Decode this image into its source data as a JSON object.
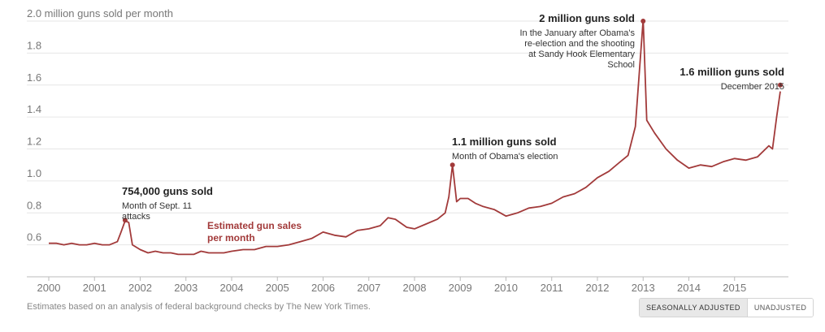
{
  "chart_data": {
    "type": "line",
    "title": "",
    "ylabel_top": "2.0 million guns sold per month",
    "xlabel": "",
    "ylim": [
      0.4,
      2.0
    ],
    "xlim": [
      2000,
      2016
    ],
    "yticks": [
      {
        "value": 2.0,
        "label": "2.0 million guns sold per month"
      },
      {
        "value": 1.8,
        "label": "1.8"
      },
      {
        "value": 1.6,
        "label": "1.6"
      },
      {
        "value": 1.4,
        "label": "1.4"
      },
      {
        "value": 1.2,
        "label": "1.2"
      },
      {
        "value": 1.0,
        "label": "1.0"
      },
      {
        "value": 0.8,
        "label": "0.8"
      },
      {
        "value": 0.6,
        "label": "0.6"
      }
    ],
    "xticks": [
      {
        "value": 2000,
        "label": "2000"
      },
      {
        "value": 2001,
        "label": "2001"
      },
      {
        "value": 2002,
        "label": "2002"
      },
      {
        "value": 2003,
        "label": "2003"
      },
      {
        "value": 2004,
        "label": "2004"
      },
      {
        "value": 2005,
        "label": "2005"
      },
      {
        "value": 2006,
        "label": "2006"
      },
      {
        "value": 2007,
        "label": "2007"
      },
      {
        "value": 2008,
        "label": "2008"
      },
      {
        "value": 2009,
        "label": "2009"
      },
      {
        "value": 2010,
        "label": "2010"
      },
      {
        "value": 2011,
        "label": "2011"
      },
      {
        "value": 2012,
        "label": "2012"
      },
      {
        "value": 2013,
        "label": "2013"
      },
      {
        "value": 2014,
        "label": "2014"
      },
      {
        "value": 2015,
        "label": "2015"
      }
    ],
    "grid": true,
    "series": [
      {
        "color": "#a23a3a",
        "points": [
          [
            2000.0,
            0.61
          ],
          [
            2000.17,
            0.61
          ],
          [
            2000.33,
            0.6
          ],
          [
            2000.5,
            0.61
          ],
          [
            2000.67,
            0.6
          ],
          [
            2000.83,
            0.6
          ],
          [
            2001.0,
            0.61
          ],
          [
            2001.17,
            0.6
          ],
          [
            2001.33,
            0.6
          ],
          [
            2001.5,
            0.62
          ],
          [
            2001.58,
            0.68
          ],
          [
            2001.67,
            0.75
          ],
          [
            2001.75,
            0.74
          ],
          [
            2001.83,
            0.6
          ],
          [
            2002.0,
            0.57
          ],
          [
            2002.17,
            0.55
          ],
          [
            2002.33,
            0.56
          ],
          [
            2002.5,
            0.55
          ],
          [
            2002.67,
            0.55
          ],
          [
            2002.83,
            0.54
          ],
          [
            2003.0,
            0.54
          ],
          [
            2003.17,
            0.54
          ],
          [
            2003.33,
            0.56
          ],
          [
            2003.5,
            0.55
          ],
          [
            2003.67,
            0.55
          ],
          [
            2003.83,
            0.55
          ],
          [
            2004.0,
            0.56
          ],
          [
            2004.25,
            0.57
          ],
          [
            2004.5,
            0.57
          ],
          [
            2004.75,
            0.59
          ],
          [
            2005.0,
            0.59
          ],
          [
            2005.25,
            0.6
          ],
          [
            2005.5,
            0.62
          ],
          [
            2005.75,
            0.64
          ],
          [
            2006.0,
            0.68
          ],
          [
            2006.25,
            0.66
          ],
          [
            2006.5,
            0.65
          ],
          [
            2006.75,
            0.69
          ],
          [
            2007.0,
            0.7
          ],
          [
            2007.25,
            0.72
          ],
          [
            2007.42,
            0.77
          ],
          [
            2007.58,
            0.76
          ],
          [
            2007.83,
            0.71
          ],
          [
            2008.0,
            0.7
          ],
          [
            2008.25,
            0.73
          ],
          [
            2008.5,
            0.76
          ],
          [
            2008.67,
            0.8
          ],
          [
            2008.75,
            0.9
          ],
          [
            2008.83,
            1.1
          ],
          [
            2008.92,
            0.87
          ],
          [
            2009.0,
            0.89
          ],
          [
            2009.17,
            0.89
          ],
          [
            2009.33,
            0.86
          ],
          [
            2009.5,
            0.84
          ],
          [
            2009.75,
            0.82
          ],
          [
            2010.0,
            0.78
          ],
          [
            2010.25,
            0.8
          ],
          [
            2010.5,
            0.83
          ],
          [
            2010.75,
            0.84
          ],
          [
            2011.0,
            0.86
          ],
          [
            2011.25,
            0.9
          ],
          [
            2011.5,
            0.92
          ],
          [
            2011.75,
            0.96
          ],
          [
            2012.0,
            1.02
          ],
          [
            2012.25,
            1.06
          ],
          [
            2012.5,
            1.12
          ],
          [
            2012.67,
            1.16
          ],
          [
            2012.83,
            1.34
          ],
          [
            2013.0,
            2.01
          ],
          [
            2013.08,
            1.38
          ],
          [
            2013.25,
            1.3
          ],
          [
            2013.5,
            1.2
          ],
          [
            2013.75,
            1.13
          ],
          [
            2014.0,
            1.08
          ],
          [
            2014.25,
            1.1
          ],
          [
            2014.5,
            1.09
          ],
          [
            2014.75,
            1.12
          ],
          [
            2015.0,
            1.14
          ],
          [
            2015.25,
            1.13
          ],
          [
            2015.5,
            1.15
          ],
          [
            2015.75,
            1.22
          ],
          [
            2015.83,
            1.2
          ],
          [
            2015.92,
            1.4
          ],
          [
            2016.0,
            1.56
          ]
        ]
      }
    ],
    "annotations": [
      {
        "name": "sept11",
        "x": 2001.67,
        "y": 0.754,
        "title": "754,000 guns sold",
        "lines": [
          "Month of Sept. 11",
          "attacks"
        ],
        "align": "start"
      },
      {
        "name": "obama-election",
        "x": 2008.83,
        "y": 1.1,
        "title": "1.1 million guns sold",
        "lines": [
          "Month of Obama's election"
        ],
        "align": "start"
      },
      {
        "name": "sandy-hook",
        "x": 2013.0,
        "y": 2.0,
        "title": "2 million guns sold",
        "lines": [
          "In the January after Obama's",
          "re-election and the shooting",
          "at Sandy Hook Elementary",
          "School"
        ],
        "align": "end"
      },
      {
        "name": "december-2015",
        "x": 2016.0,
        "y": 1.6,
        "title": "1.6 million guns sold",
        "lines": [
          "December 2015"
        ],
        "align": "end"
      }
    ],
    "series_label": {
      "lines": [
        "Estimated gun sales",
        "per month"
      ],
      "color": "#a23a3a"
    }
  },
  "footnote": "Estimates based on an analysis of federal background checks by The New York Times.",
  "toggle": {
    "seasonal_label": "SEASONALLY ADJUSTED",
    "unadjusted_label": "UNADJUSTED"
  }
}
